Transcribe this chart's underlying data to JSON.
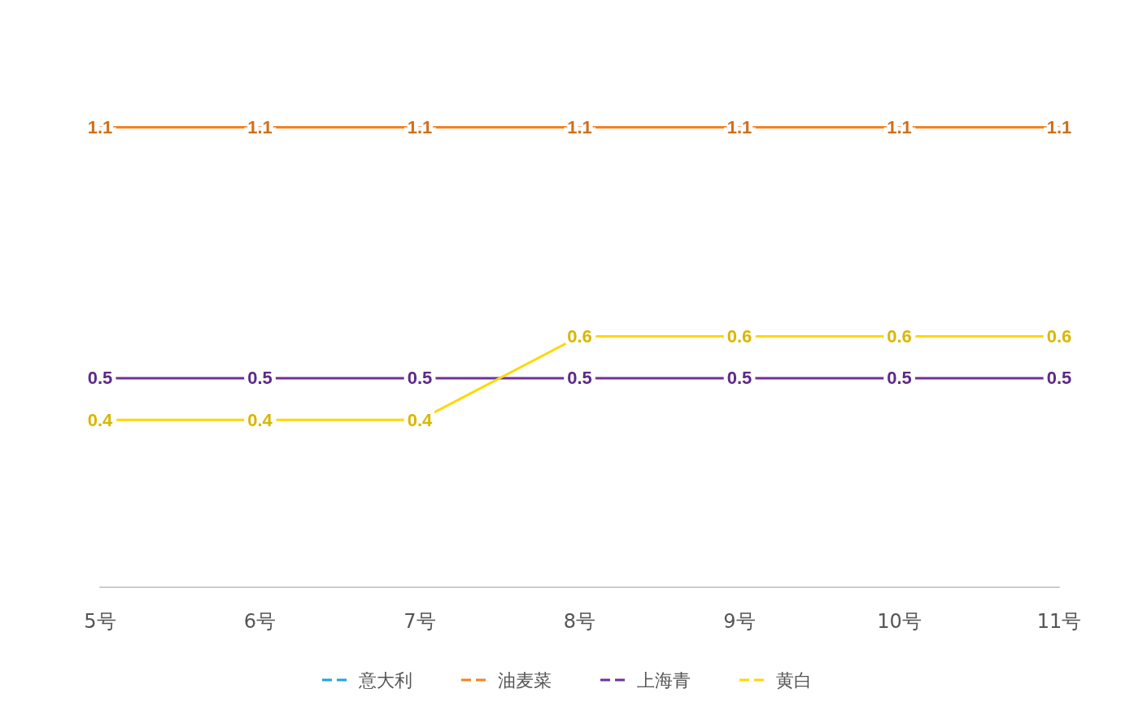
{
  "chart_data": {
    "type": "line",
    "categories": [
      "5号",
      "6号",
      "7号",
      "8号",
      "9号",
      "10号",
      "11号"
    ],
    "series": [
      {
        "name": "意大利",
        "color": "#1aa3e8",
        "values": [
          null,
          null,
          null,
          null,
          null,
          null,
          null
        ]
      },
      {
        "name": "油麦菜",
        "color": "#f5821f",
        "values": [
          1.1,
          1.1,
          1.1,
          1.1,
          1.1,
          1.1,
          1.1
        ]
      },
      {
        "name": "上海青",
        "color": "#7030a0",
        "values": [
          0.5,
          0.5,
          0.5,
          0.5,
          0.5,
          0.5,
          0.5
        ]
      },
      {
        "name": "黄白",
        "color": "#ffd700",
        "values": [
          0.4,
          0.4,
          0.4,
          0.6,
          0.6,
          0.6,
          0.6
        ]
      }
    ],
    "tick_labels": "x",
    "data_labels": true,
    "legend": "bottom",
    "grid": false,
    "marker": "none",
    "line_style": "solid"
  }
}
